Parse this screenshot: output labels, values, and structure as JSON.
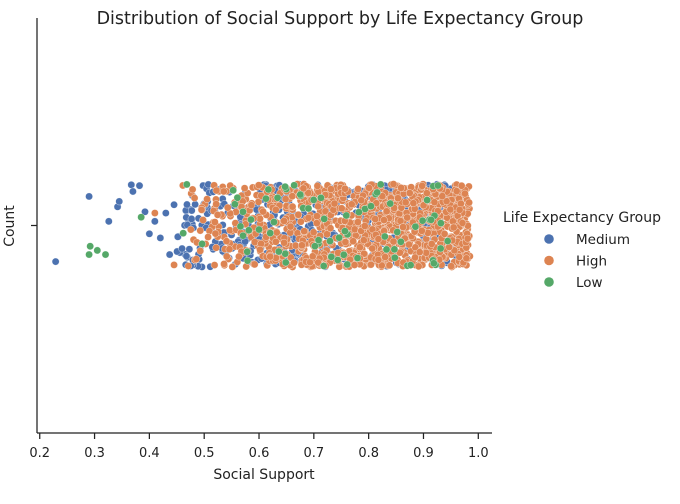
{
  "chart_data": {
    "type": "scatter",
    "title": "Distribution of Social Support by Life Expectancy Group",
    "xlabel": "Social Support",
    "ylabel": "Count",
    "xlim": [
      0.195,
      1.025
    ],
    "x_ticks": [
      0.2,
      0.3,
      0.4,
      0.5,
      0.6,
      0.7,
      0.8,
      0.9,
      1.0
    ],
    "x_tick_labels": [
      "0.2",
      "0.3",
      "0.4",
      "0.5",
      "0.6",
      "0.7",
      "0.8",
      "0.9",
      "1.0"
    ],
    "y_ticks": [
      0
    ],
    "y_tick_labels": [
      ""
    ],
    "ylim": [
      -0.5,
      0.5
    ],
    "jitter": 0.1,
    "grid": false,
    "legend": {
      "title": "Life Expectancy Group",
      "position": "right"
    },
    "series": [
      {
        "name": "Medium",
        "color": "#4c72b0",
        "count": 560,
        "range": [
          0.45,
          0.96
        ],
        "outliers": [
          {
            "x": 0.229,
            "y": -0.087
          },
          {
            "x": 0.29,
            "y": 0.07
          },
          {
            "x": 0.326,
            "y": 0.01
          },
          {
            "x": 0.342,
            "y": 0.045
          },
          {
            "x": 0.345,
            "y": 0.058
          },
          {
            "x": 0.367,
            "y": 0.098
          },
          {
            "x": 0.37,
            "y": 0.082
          },
          {
            "x": 0.382,
            "y": 0.096
          },
          {
            "x": 0.392,
            "y": 0.033
          },
          {
            "x": 0.4,
            "y": -0.02
          },
          {
            "x": 0.41,
            "y": 0.01
          },
          {
            "x": 0.42,
            "y": -0.03
          },
          {
            "x": 0.43,
            "y": 0.03
          },
          {
            "x": 0.437,
            "y": -0.07
          },
          {
            "x": 0.445,
            "y": 0.05
          }
        ]
      },
      {
        "name": "High",
        "color": "#dd8452",
        "count": 1200,
        "range": [
          0.44,
          0.985
        ],
        "outliers": [
          {
            "x": 0.41,
            "y": 0.03
          },
          {
            "x": 0.445,
            "y": -0.095
          }
        ]
      },
      {
        "name": "Low",
        "color": "#55a868",
        "count": 75,
        "range": [
          0.46,
          0.96
        ],
        "outliers": [
          {
            "x": 0.29,
            "y": -0.07
          },
          {
            "x": 0.292,
            "y": -0.05
          },
          {
            "x": 0.305,
            "y": -0.06
          },
          {
            "x": 0.32,
            "y": -0.07
          },
          {
            "x": 0.385,
            "y": 0.02
          }
        ]
      }
    ]
  }
}
